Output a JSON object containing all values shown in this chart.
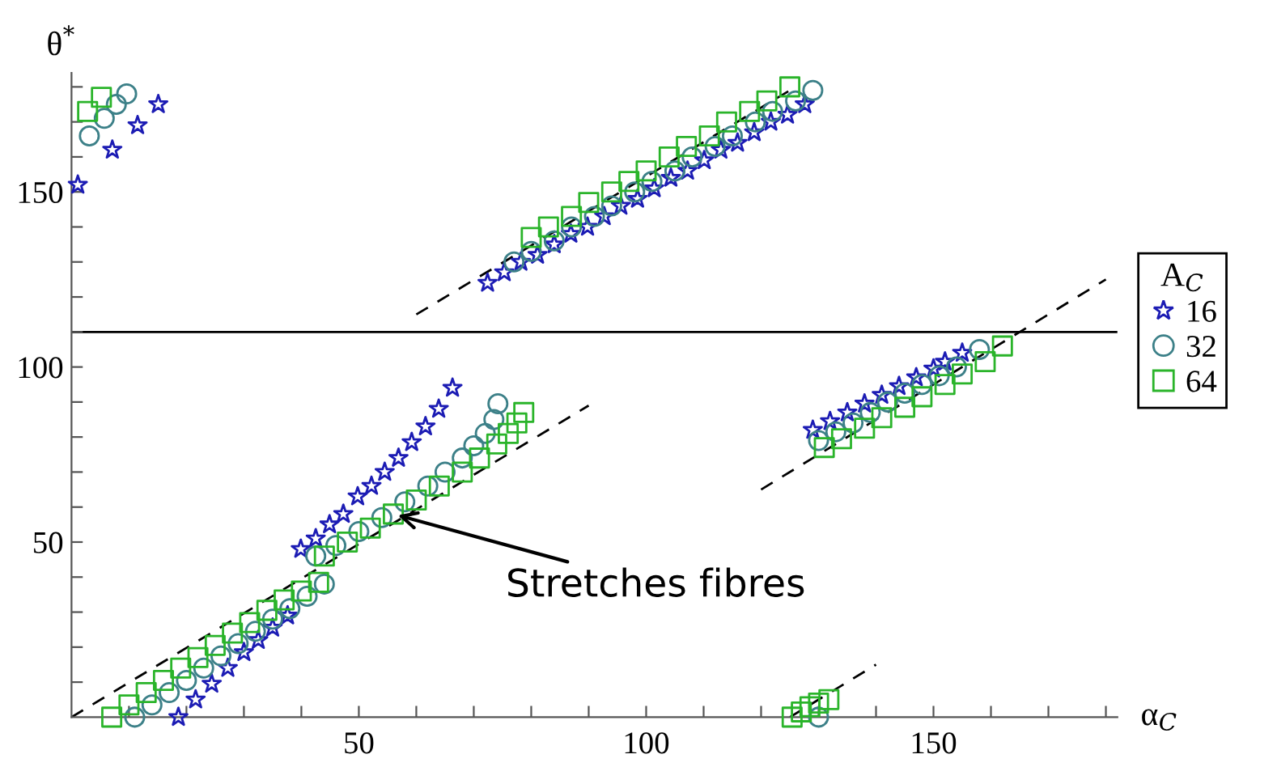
{
  "chart_data": {
    "type": "scatter",
    "xlabel": "α$_{C}$",
    "ylabel": "θ$^{*}$",
    "legend_title": "A$_{C}$",
    "legend": "right",
    "grid": false,
    "xlim": [
      0,
      182
    ],
    "ylim": [
      0,
      184
    ],
    "xticks": [
      {
        "value": 10,
        "label": null
      },
      {
        "value": 20,
        "label": null
      },
      {
        "value": 30,
        "label": null
      },
      {
        "value": 40,
        "label": null
      },
      50,
      {
        "value": 60,
        "label": null
      },
      {
        "value": 70,
        "label": null
      },
      {
        "value": 80,
        "label": null
      },
      {
        "value": 90,
        "label": null
      },
      100,
      {
        "value": 110,
        "label": null
      },
      {
        "value": 120,
        "label": null
      },
      {
        "value": 130,
        "label": null
      },
      {
        "value": 140,
        "label": null
      },
      150,
      {
        "value": 160,
        "label": null
      },
      {
        "value": 170,
        "label": null
      },
      {
        "value": 180,
        "label": null
      }
    ],
    "yticks": [
      {
        "value": 10,
        "label": null
      },
      {
        "value": 20,
        "label": null
      },
      {
        "value": 30,
        "label": null
      },
      {
        "value": 40,
        "label": null
      },
      50,
      {
        "value": 60,
        "label": null
      },
      {
        "value": 70,
        "label": null
      },
      {
        "value": 80,
        "label": null
      },
      {
        "value": 90,
        "label": null
      },
      100,
      {
        "value": 110,
        "label": null
      },
      {
        "value": 120,
        "label": null
      },
      {
        "value": 130,
        "label": null
      },
      {
        "value": 140,
        "label": null
      },
      150,
      {
        "value": 160,
        "label": null
      },
      {
        "value": 170,
        "label": null
      },
      {
        "value": 180,
        "label": null
      }
    ],
    "ref_lines": [
      {
        "axis": "y",
        "value": 110,
        "label": null,
        "color": "#000000",
        "line_style": "solid"
      }
    ],
    "annotations": [
      {
        "text": "Stretches fibres",
        "x": 56,
        "y": 58
      }
    ],
    "series": [
      {
        "name": "16",
        "marker": "star",
        "color": "#1c1cb4",
        "x": [
          1.1,
          7.1,
          11.5,
          15.1,
          18.6,
          21.6,
          24.4,
          27.2,
          30,
          32.5,
          35,
          37.6,
          39.9,
          42.5,
          44.9,
          47.3,
          49.8,
          52.2,
          54.5,
          56.9,
          59.2,
          61.6,
          63.9,
          66.3,
          72.4,
          75.3,
          78.2,
          81.1,
          84,
          86.9,
          89.8,
          92.7,
          95.6,
          98.5,
          101.4,
          104.3,
          107.2,
          110.1,
          113,
          115.9,
          118.8,
          121.7,
          124.6,
          127.6,
          129,
          132,
          135,
          138,
          141,
          144,
          147,
          150,
          152,
          155
        ],
        "values": [
          152,
          162,
          169,
          175,
          0,
          5,
          9.5,
          14,
          18.5,
          22,
          25.5,
          29,
          48,
          51,
          55,
          58,
          63,
          66,
          70,
          74,
          78.5,
          83,
          88,
          94,
          124,
          127,
          130,
          132,
          135,
          138,
          140,
          143,
          146,
          148,
          151,
          154,
          156,
          159,
          162,
          164,
          167,
          170,
          172,
          175,
          82,
          84.5,
          87,
          89.5,
          92,
          94.5,
          97,
          99.5,
          101.5,
          104
        ]
      },
      {
        "name": "32",
        "marker": "circle",
        "color": "#3c8088",
        "x": [
          3.1,
          5.7,
          7.8,
          9.6,
          11,
          14,
          17,
          20,
          23,
          26,
          29,
          32,
          35,
          38,
          41,
          44,
          42.5,
          46,
          50,
          54,
          58,
          62,
          65,
          68,
          70,
          72,
          73.5,
          74.2,
          77,
          80,
          84,
          87,
          91,
          94,
          98,
          101,
          105,
          108,
          112,
          115,
          119,
          122,
          126,
          129,
          130,
          133,
          136,
          139,
          142,
          145,
          148,
          151,
          154,
          158,
          130
        ],
        "values": [
          166,
          171,
          175,
          178,
          0,
          3.5,
          7,
          10.5,
          14,
          17.5,
          21,
          24.5,
          28,
          31,
          34.5,
          38,
          46,
          49,
          53,
          57,
          61.5,
          66,
          70,
          74,
          77.5,
          81,
          85,
          89.5,
          130,
          133,
          136,
          140,
          143,
          146,
          150,
          153,
          156,
          160,
          163,
          166,
          170,
          173,
          176,
          179,
          79,
          81.5,
          84,
          87,
          90,
          92.5,
          95,
          97.5,
          100,
          105,
          0
        ]
      },
      {
        "name": "64",
        "marker": "square",
        "color": "#2ab42a",
        "x": [
          2.8,
          5.2,
          7,
          10,
          13,
          16,
          19,
          22,
          25,
          28,
          31,
          34,
          37,
          40,
          43,
          44,
          48,
          52,
          56,
          60,
          64,
          68,
          71,
          74,
          76,
          77.5,
          78.7,
          80,
          83,
          87,
          90,
          94,
          97,
          100,
          104,
          107,
          111,
          114,
          118,
          121,
          125,
          131,
          134,
          138,
          141,
          145,
          148,
          152,
          155,
          159,
          162,
          125.4,
          127,
          128.5,
          130,
          131.8
        ],
        "values": [
          173,
          177,
          0,
          3.5,
          7,
          10.5,
          14,
          17,
          20.5,
          24,
          27,
          30.5,
          33.5,
          36,
          38.5,
          46,
          50,
          54,
          58,
          62,
          66,
          70,
          74,
          78,
          81,
          84,
          87,
          137,
          140,
          143,
          147,
          150,
          153,
          156,
          160,
          163,
          166,
          170,
          173,
          176,
          180,
          77,
          79.5,
          82.5,
          85.5,
          88.5,
          91.5,
          95,
          98,
          101.5,
          106,
          0,
          1.5,
          3,
          4,
          5
        ]
      },
      {
        "type": "line",
        "marker": "none",
        "line_style": "dashed",
        "color": "#000000",
        "x": [
          0,
          90
        ],
        "values": [
          0,
          89
        ]
      },
      {
        "type": "line",
        "marker": "none",
        "line_style": "dashed",
        "color": "#000000",
        "x": [
          60,
          125
        ],
        "values": [
          115,
          179
        ]
      },
      {
        "type": "line",
        "marker": "none",
        "line_style": "dashed",
        "color": "#000000",
        "x": [
          120,
          180
        ],
        "values": [
          65,
          125
        ]
      },
      {
        "type": "line",
        "marker": "none",
        "line_style": "dashed",
        "color": "#000000",
        "x": [
          125,
          140
        ],
        "values": [
          0,
          15
        ]
      }
    ]
  }
}
